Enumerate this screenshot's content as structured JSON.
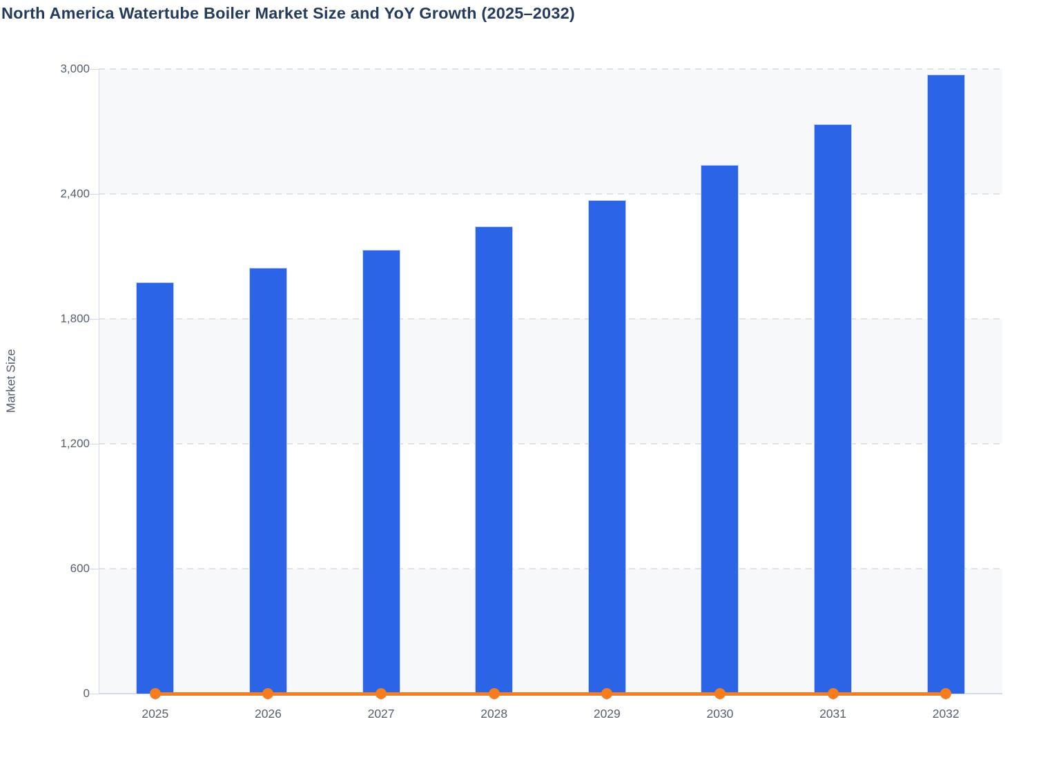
{
  "page": {
    "title": "North America Watertube Boiler Market Size and YoY Growth (2025–2032)"
  },
  "chart_data": {
    "type": "bar",
    "title": "North America Watertube Boiler Market Size and YoY Growth (2025–2032)",
    "categories": [
      "2025",
      "2026",
      "2027",
      "2028",
      "2029",
      "2030",
      "2031",
      "2032"
    ],
    "series": [
      {
        "name": "Market Size",
        "type": "bar",
        "values": [
          1975,
          2045,
          2130,
          2245,
          2370,
          2540,
          2735,
          2975
        ]
      },
      {
        "name": "YoY Growth",
        "type": "line",
        "values": [
          0,
          0,
          0,
          0,
          0,
          0,
          0,
          0
        ]
      }
    ],
    "xlabel": "",
    "ylabel": "Market Size",
    "ylim": [
      0,
      3000
    ],
    "yticks": [
      0,
      600,
      1200,
      1800,
      2400,
      3000
    ],
    "ytick_labels": [
      "0",
      "600",
      "1,200",
      "1,800",
      "2,400",
      "3,000"
    ],
    "grid": "horizontal-dashed",
    "legend": "none",
    "plot_bands": "alternating light bands between gridlines (top band shaded)"
  },
  "colors": {
    "bar": "#2b64e7",
    "bar_border": "#c5d2f5",
    "line": "#f67d1d",
    "band": "#f7f8fa",
    "gridline": "#e1e2e6",
    "axis_line": "#d3d9f0",
    "axis_text": "#565f70",
    "title_text": "#253b5e"
  }
}
